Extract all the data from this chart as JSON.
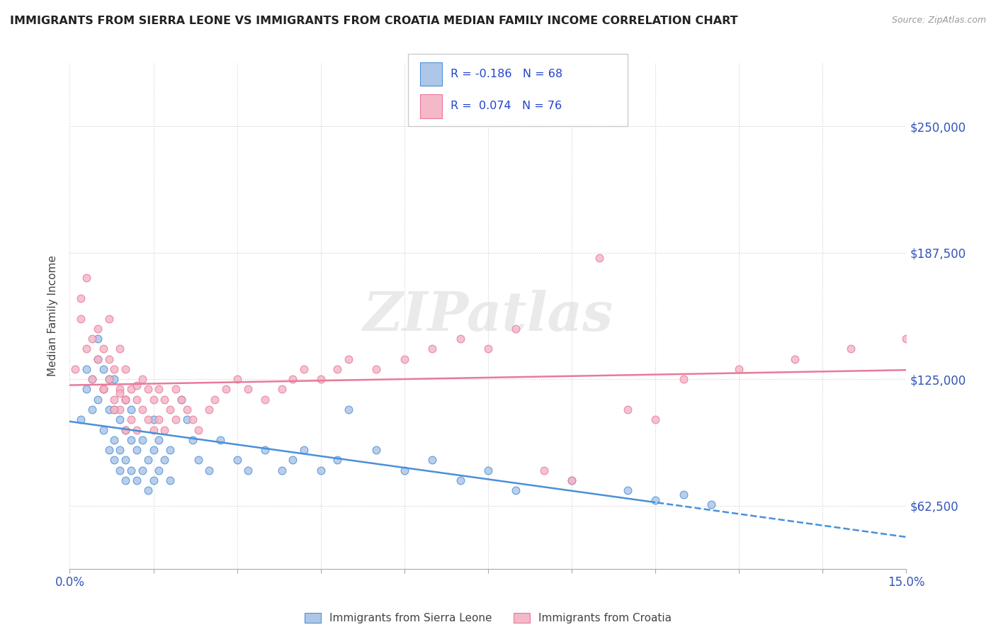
{
  "title": "IMMIGRANTS FROM SIERRA LEONE VS IMMIGRANTS FROM CROATIA MEDIAN FAMILY INCOME CORRELATION CHART",
  "source": "Source: ZipAtlas.com",
  "ylabel": "Median Family Income",
  "xlim": [
    0.0,
    0.15
  ],
  "ylim": [
    31250,
    281250
  ],
  "xticks": [
    0.0,
    0.015,
    0.03,
    0.045,
    0.06,
    0.075,
    0.09,
    0.105,
    0.12,
    0.135,
    0.15
  ],
  "xtick_labels": [
    "0.0%",
    "",
    "",
    "",
    "",
    "",
    "",
    "",
    "",
    "",
    "15.0%"
  ],
  "ytick_values": [
    62500,
    125000,
    187500,
    250000
  ],
  "ytick_labels": [
    "$62,500",
    "$125,000",
    "$187,500",
    "$250,000"
  ],
  "legend_blue_r": "-0.186",
  "legend_blue_n": "68",
  "legend_pink_r": "0.074",
  "legend_pink_n": "76",
  "blue_color": "#aec6e8",
  "pink_color": "#f4b8c8",
  "blue_line_color": "#4a90d9",
  "pink_line_color": "#e87a9a",
  "watermark": "ZIPatlas",
  "sierra_leone_x": [
    0.002,
    0.003,
    0.003,
    0.004,
    0.004,
    0.005,
    0.005,
    0.005,
    0.006,
    0.006,
    0.006,
    0.007,
    0.007,
    0.007,
    0.008,
    0.008,
    0.008,
    0.008,
    0.009,
    0.009,
    0.009,
    0.01,
    0.01,
    0.01,
    0.01,
    0.011,
    0.011,
    0.011,
    0.012,
    0.012,
    0.013,
    0.013,
    0.014,
    0.014,
    0.015,
    0.015,
    0.015,
    0.016,
    0.016,
    0.017,
    0.018,
    0.018,
    0.02,
    0.021,
    0.022,
    0.023,
    0.025,
    0.027,
    0.03,
    0.032,
    0.035,
    0.038,
    0.04,
    0.042,
    0.045,
    0.048,
    0.05,
    0.055,
    0.06,
    0.065,
    0.07,
    0.075,
    0.08,
    0.09,
    0.1,
    0.105,
    0.11,
    0.115
  ],
  "sierra_leone_y": [
    105000,
    120000,
    130000,
    110000,
    125000,
    115000,
    135000,
    145000,
    100000,
    120000,
    130000,
    90000,
    110000,
    125000,
    85000,
    95000,
    110000,
    125000,
    80000,
    90000,
    105000,
    75000,
    85000,
    100000,
    115000,
    80000,
    95000,
    110000,
    75000,
    90000,
    80000,
    95000,
    70000,
    85000,
    75000,
    90000,
    105000,
    80000,
    95000,
    85000,
    75000,
    90000,
    115000,
    105000,
    95000,
    85000,
    80000,
    95000,
    85000,
    80000,
    90000,
    80000,
    85000,
    90000,
    80000,
    85000,
    110000,
    90000,
    80000,
    85000,
    75000,
    80000,
    70000,
    75000,
    70000,
    65000,
    68000,
    63000
  ],
  "croatia_x": [
    0.001,
    0.002,
    0.002,
    0.003,
    0.003,
    0.004,
    0.004,
    0.005,
    0.005,
    0.006,
    0.006,
    0.007,
    0.007,
    0.007,
    0.008,
    0.008,
    0.009,
    0.009,
    0.009,
    0.01,
    0.01,
    0.01,
    0.011,
    0.011,
    0.012,
    0.012,
    0.013,
    0.013,
    0.014,
    0.014,
    0.015,
    0.015,
    0.016,
    0.016,
    0.017,
    0.017,
    0.018,
    0.019,
    0.019,
    0.02,
    0.021,
    0.022,
    0.023,
    0.025,
    0.026,
    0.028,
    0.03,
    0.032,
    0.035,
    0.038,
    0.04,
    0.042,
    0.045,
    0.048,
    0.05,
    0.055,
    0.06,
    0.065,
    0.07,
    0.075,
    0.08,
    0.085,
    0.09,
    0.095,
    0.1,
    0.105,
    0.11,
    0.12,
    0.13,
    0.14,
    0.15,
    0.01,
    0.008,
    0.006,
    0.009,
    0.012
  ],
  "croatia_y": [
    130000,
    155000,
    165000,
    140000,
    175000,
    125000,
    145000,
    135000,
    150000,
    120000,
    140000,
    125000,
    135000,
    155000,
    115000,
    130000,
    120000,
    110000,
    140000,
    100000,
    115000,
    130000,
    105000,
    120000,
    100000,
    115000,
    110000,
    125000,
    105000,
    120000,
    100000,
    115000,
    105000,
    120000,
    100000,
    115000,
    110000,
    105000,
    120000,
    115000,
    110000,
    105000,
    100000,
    110000,
    115000,
    120000,
    125000,
    120000,
    115000,
    120000,
    125000,
    130000,
    125000,
    130000,
    135000,
    130000,
    135000,
    140000,
    145000,
    140000,
    150000,
    80000,
    75000,
    185000,
    110000,
    105000,
    125000,
    130000,
    135000,
    140000,
    145000,
    115000,
    110000,
    120000,
    118000,
    122000
  ]
}
